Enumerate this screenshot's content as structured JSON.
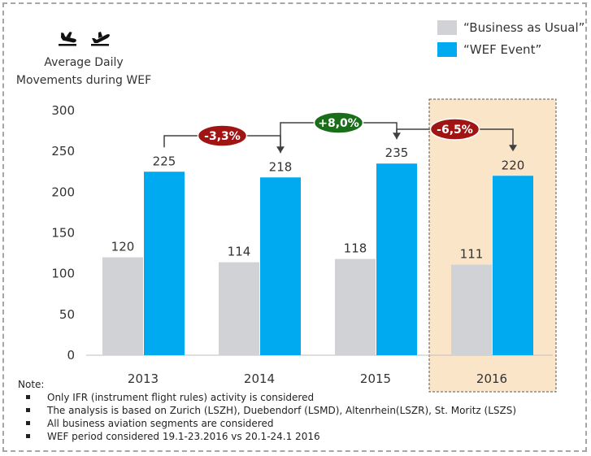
{
  "chart_data": {
    "type": "bar",
    "categories": [
      "2013",
      "2014",
      "2015",
      "2016"
    ],
    "series": [
      {
        "name": "“Business as Usual”",
        "values": [
          120,
          114,
          118,
          111
        ],
        "color": "#d0d2d6"
      },
      {
        "name": "“WEF Event”",
        "values": [
          225,
          218,
          235,
          220
        ],
        "color": "#00aaf0"
      }
    ],
    "ylim": [
      0,
      300
    ],
    "yticks": [
      0,
      50,
      100,
      150,
      200,
      250,
      300
    ],
    "title": "Average Daily Movements during WEF",
    "title_lines": [
      "Average Daily",
      "Movements during WEF"
    ],
    "legend_position": "top-right",
    "changes": [
      {
        "label": "-3,3%",
        "from": "2013",
        "to": "2014",
        "color": "#a01414"
      },
      {
        "label": "+8,0%",
        "from": "2014",
        "to": "2015",
        "color": "#1a6e1a"
      },
      {
        "label": "-6,5%",
        "from": "2015",
        "to": "2016",
        "color": "#a01414"
      }
    ],
    "highlight_category": "2016",
    "highlight_color": "#fbe5c8",
    "grid": false
  },
  "icons": [
    "airplane-landing-icon",
    "airplane-takeoff-icon"
  ],
  "notes": {
    "title": "Note:",
    "items": [
      "Only IFR (instrument flight rules) activity is considered",
      "The analysis is based on Zurich (LSZH), Duebendorf (LSMD), Altenrhein(LSZR), St. Moritz (LSZS)",
      "All business aviation segments are considered",
      "WEF period considered 19.1-23.2016 vs 20.1-24.1 2016"
    ]
  }
}
